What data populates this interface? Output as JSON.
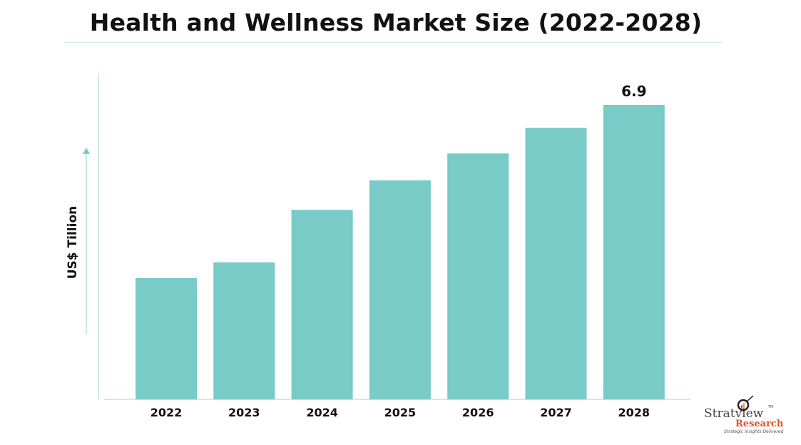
{
  "chart_data": {
    "type": "bar",
    "title": "Health and Wellness Market Size (2022-2028)",
    "xlabel": "",
    "ylabel": "US$ Tillion",
    "categories": [
      "2022",
      "2023",
      "2024",
      "2025",
      "2026",
      "2027",
      "2028"
    ],
    "values": [
      2.84,
      3.21,
      4.44,
      5.13,
      5.76,
      6.36,
      6.9
    ],
    "data_labels": [
      "",
      "",
      "",
      "",
      "",
      "",
      "6.9"
    ],
    "ylim": [
      0,
      7.6
    ],
    "grid": false,
    "bar_color": "#78cbc7",
    "axis_color": "#bfe3e0"
  },
  "logo": {
    "name": "Stratview",
    "sub": "Research",
    "tagline": "Strategic Insights Delivered",
    "tm": "TM"
  }
}
